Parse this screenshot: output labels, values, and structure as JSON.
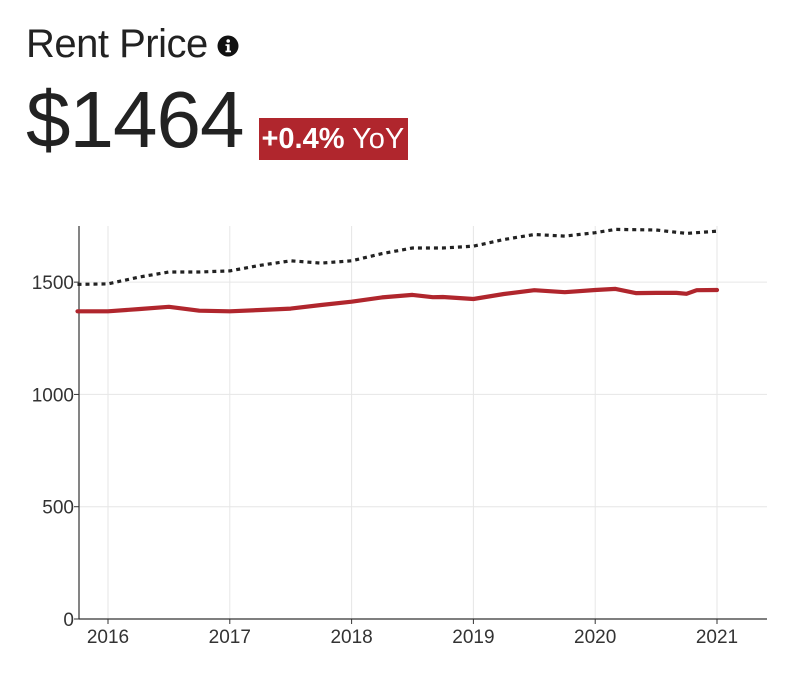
{
  "header": {
    "title": "Rent Price",
    "value": "$1464",
    "yoy_change": "+0.4%",
    "yoy_suffix": "YoY",
    "info_icon": "info-circle-icon"
  },
  "colors": {
    "primary_line": "#b0262d",
    "secondary_line": "#222222",
    "badge_bg": "#b0262d",
    "grid": "#e6e6e6",
    "axis": "#333333"
  },
  "chart_data": {
    "type": "line",
    "title": "",
    "xlabel": "",
    "ylabel": "",
    "ylim": [
      0,
      1750
    ],
    "xlim": [
      "2015-10",
      "2021-04"
    ],
    "x_ticks": [
      "2016",
      "2017",
      "2018",
      "2019",
      "2020",
      "2021"
    ],
    "y_ticks": [
      "0",
      "500",
      "1000",
      "1500"
    ],
    "y_tick_values": [
      0,
      500,
      1000,
      1500
    ],
    "grid": true,
    "legend": "none",
    "series": [
      {
        "style": "solid",
        "color": "#b0262d",
        "x": [
          "2015-10",
          "2016-01",
          "2016-04",
          "2016-07",
          "2016-10",
          "2017-01",
          "2017-04",
          "2017-07",
          "2017-10",
          "2018-01",
          "2018-04",
          "2018-07",
          "2018-09",
          "2018-10",
          "2019-01",
          "2019-04",
          "2019-07",
          "2019-10",
          "2020-01",
          "2020-03",
          "2020-05",
          "2020-07",
          "2020-09",
          "2020-10",
          "2020-11",
          "2021-01"
        ],
        "values": [
          1370,
          1370,
          1380,
          1390,
          1373,
          1370,
          1376,
          1382,
          1398,
          1413,
          1432,
          1443,
          1433,
          1434,
          1425,
          1447,
          1464,
          1455,
          1465,
          1470,
          1451,
          1452,
          1452,
          1448,
          1464,
          1465
        ]
      },
      {
        "style": "dotted",
        "color": "#222222",
        "x": [
          "2015-10",
          "2016-01",
          "2016-04",
          "2016-07",
          "2016-10",
          "2017-01",
          "2017-04",
          "2017-07",
          "2017-10",
          "2018-01",
          "2018-04",
          "2018-07",
          "2018-10",
          "2019-01",
          "2019-04",
          "2019-07",
          "2019-10",
          "2020-01",
          "2020-03",
          "2020-07",
          "2020-10",
          "2021-01"
        ],
        "values": [
          1490,
          1492,
          1522,
          1545,
          1545,
          1550,
          1575,
          1595,
          1585,
          1595,
          1627,
          1652,
          1652,
          1660,
          1690,
          1712,
          1705,
          1720,
          1735,
          1732,
          1717,
          1727
        ]
      }
    ]
  }
}
